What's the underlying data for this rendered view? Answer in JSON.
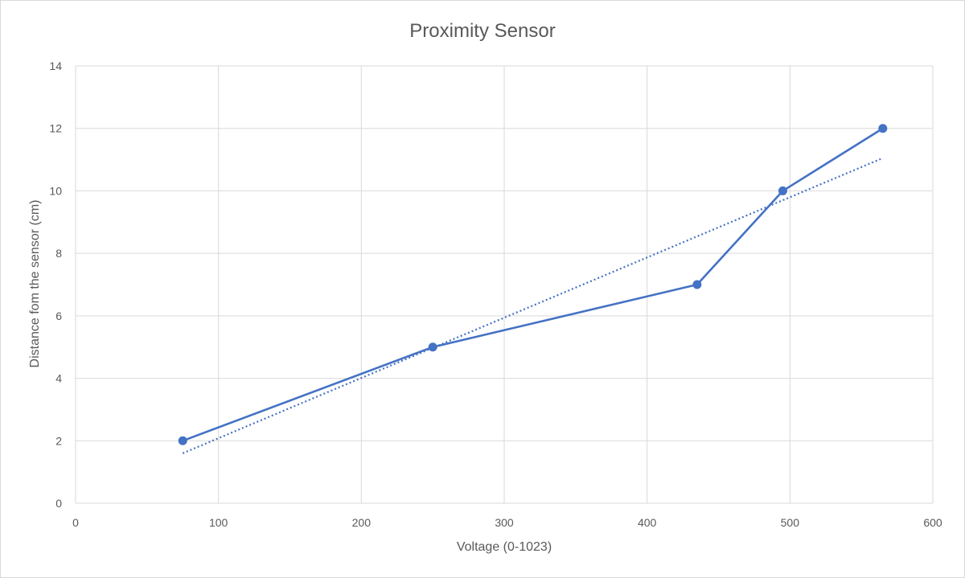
{
  "chart_data": {
    "type": "scatter",
    "title": "Proximity Sensor",
    "xlabel": "Voltage (0-1023)",
    "ylabel": "Distance fom the sensor (cm)",
    "xlim": [
      0,
      600
    ],
    "ylim": [
      0,
      14
    ],
    "xticks": [
      0,
      100,
      200,
      300,
      400,
      500,
      600
    ],
    "yticks": [
      0,
      2,
      4,
      6,
      8,
      10,
      12,
      14
    ],
    "grid": true,
    "series": [
      {
        "color": "#4472c4",
        "marker": "circle",
        "line": "solid",
        "x": [
          75,
          250,
          435,
          495,
          565
        ],
        "y": [
          2,
          5,
          7,
          10,
          12
        ]
      }
    ],
    "trendline": {
      "type": "linear",
      "style": "dotted",
      "color": "#4472c4",
      "x": [
        75,
        565
      ],
      "y": [
        1.6,
        11.05
      ]
    }
  }
}
